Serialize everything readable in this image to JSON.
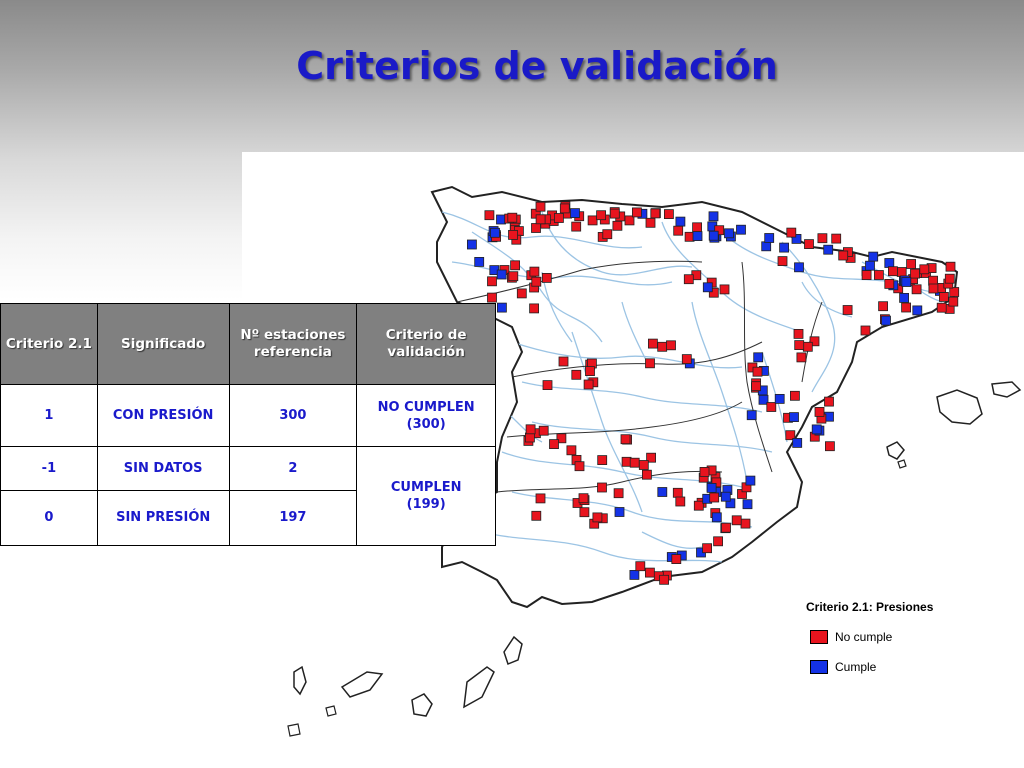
{
  "slide": {
    "title": "Criterios de validación"
  },
  "table": {
    "headers": [
      "Criterio 2.1",
      "Significado",
      "Nº estaciones referencia",
      "Criterio de validación"
    ],
    "rows": [
      {
        "criterio": "1",
        "significado": "CON PRESIÓN",
        "estaciones": "300"
      },
      {
        "criterio": "-1",
        "significado": "SIN DATOS",
        "estaciones": "2"
      },
      {
        "criterio": "0",
        "significado": "SIN PRESIÓN",
        "estaciones": "197"
      }
    ],
    "validation": [
      {
        "label": "NO CUMPLEN",
        "count": "(300)"
      },
      {
        "label": "CUMPLEN",
        "count": "(199)"
      }
    ]
  },
  "map": {
    "legend": {
      "title": "Criterio 2.1: Presiones",
      "items": [
        {
          "label": "No cumple",
          "color": "#e8141e"
        },
        {
          "label": "Cumple",
          "color": "#1432e6"
        }
      ]
    },
    "colors": {
      "river": "#9cc4e4",
      "outline": "#222222",
      "no_cumple": "#e8141e",
      "cumple": "#1432e6"
    }
  }
}
